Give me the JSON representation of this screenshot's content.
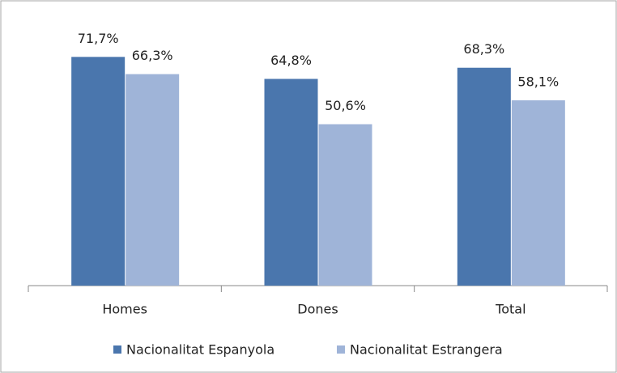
{
  "chart_data": {
    "type": "bar",
    "categories": [
      "Homes",
      "Dones",
      "Total"
    ],
    "series": [
      {
        "name": "Nacionalitat Espanyola",
        "color": "#4a76ad",
        "values": [
          71.7,
          64.8,
          68.3
        ],
        "value_labels": [
          "71,7%",
          "64,8%",
          "68,3%"
        ]
      },
      {
        "name": "Nacionalitat Estrangera",
        "color": "#9fb4d8",
        "values": [
          66.3,
          50.6,
          58.1
        ],
        "value_labels": [
          "66,3%",
          "50,6%",
          "58,1%"
        ]
      }
    ],
    "ylim": [
      0,
      87
    ],
    "grid": false,
    "legend": "bottom"
  }
}
